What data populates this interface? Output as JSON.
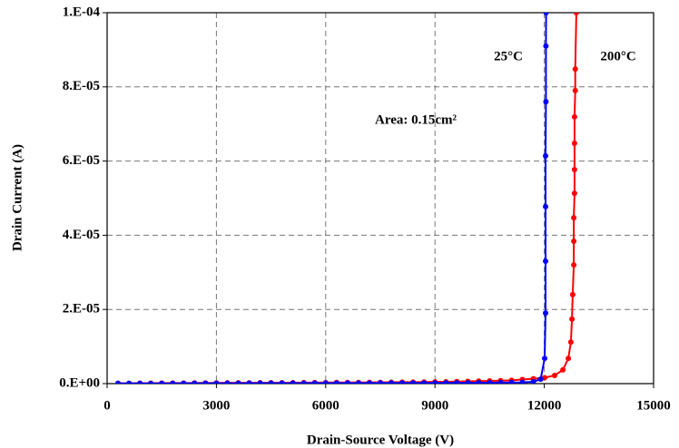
{
  "chart_data": {
    "type": "line",
    "xlabel": "Drain-Source Voltage (V)",
    "ylabel": "Drain Current (A)",
    "annotations": [
      "25°C",
      "200°C",
      "Area: 0.15cm²"
    ],
    "xlim": [
      0,
      15000
    ],
    "xticks": [
      0,
      3000,
      6000,
      9000,
      12000,
      15000
    ],
    "ylim": [
      0,
      0.0001
    ],
    "yticks": [
      {
        "value": 0,
        "label": "0.E+00"
      },
      {
        "value": 2e-05,
        "label": "2.E-05"
      },
      {
        "value": 4e-05,
        "label": "4.E-05"
      },
      {
        "value": 6e-05,
        "label": "6.E-05"
      },
      {
        "value": 8e-05,
        "label": "8.E-05"
      },
      {
        "value": 0.0001,
        "label": "1.E-04"
      }
    ],
    "grid": true,
    "series": [
      {
        "name": "200°C",
        "color": "#ff0000",
        "x": [
          300,
          600,
          900,
          1200,
          1500,
          1800,
          2100,
          2400,
          2700,
          3000,
          3300,
          3600,
          3900,
          4200,
          4500,
          4800,
          5100,
          5400,
          5700,
          6000,
          6300,
          6600,
          6900,
          7200,
          7500,
          7800,
          8100,
          8400,
          8700,
          9000,
          9300,
          9600,
          9900,
          10200,
          10500,
          10800,
          11100,
          11400,
          11700,
          12010,
          12285,
          12510,
          12660,
          12730,
          12760,
          12780,
          12810,
          12810,
          12810,
          12830,
          12830,
          12830,
          12830,
          12850,
          12850,
          12880
        ],
        "values": [
          1e-07,
          1e-07,
          1.2e-07,
          1.3e-07,
          1.4e-07,
          1.5e-07,
          1.6e-07,
          1.7e-07,
          1.8e-07,
          1.9e-07,
          2e-07,
          2.1e-07,
          2.2e-07,
          2.3e-07,
          2.4e-07,
          2.5e-07,
          2.6e-07,
          2.7e-07,
          2.8e-07,
          2.9e-07,
          3e-07,
          3.1e-07,
          3.2e-07,
          3.3e-07,
          3.5e-07,
          3.7e-07,
          3.9e-07,
          4.1e-07,
          4.3e-07,
          4.6e-07,
          5e-07,
          5.5e-07,
          6e-07,
          6.6e-07,
          7.3e-07,
          8e-07,
          9e-07,
          1.1e-06,
          1.3e-06,
          1.6e-06,
          2.2e-06,
          3.7e-06,
          6.8e-06,
          1.12e-05,
          1.74e-05,
          2.4e-05,
          3.2e-05,
          3.84e-05,
          4.47e-05,
          5.13e-05,
          5.77e-05,
          6.48e-05,
          7.19e-05,
          7.9e-05,
          8.48e-05,
          0.0001
        ]
      },
      {
        "name": "25°C",
        "color": "#0000ff",
        "x": [
          300,
          600,
          900,
          1200,
          1500,
          1800,
          2100,
          2400,
          2700,
          3000,
          3300,
          3600,
          3900,
          4200,
          4500,
          4800,
          5100,
          5400,
          5700,
          6000,
          6300,
          6600,
          6900,
          7200,
          7500,
          7800,
          8100,
          8400,
          8700,
          9000,
          9300,
          9600,
          9900,
          10200,
          10500,
          10800,
          11100,
          11400,
          11700,
          11900,
          12010,
          12035,
          12035,
          12035,
          12035,
          12045,
          12045,
          12050
        ],
        "values": [
          5e-08,
          5e-08,
          6e-08,
          6e-08,
          7e-08,
          7e-08,
          8e-08,
          8e-08,
          9e-08,
          9e-08,
          1e-07,
          1e-07,
          1.1e-07,
          1.1e-07,
          1.2e-07,
          1.2e-07,
          1.3e-07,
          1.3e-07,
          1.4e-07,
          1.4e-07,
          1.5e-07,
          1.5e-07,
          1.6e-07,
          1.6e-07,
          1.7e-07,
          1.7e-07,
          1.8e-07,
          1.8e-07,
          1.9e-07,
          1.9e-07,
          2e-07,
          2.1e-07,
          2.2e-07,
          2.3e-07,
          2.5e-07,
          2.7e-07,
          3e-07,
          3.5e-07,
          5e-07,
          1.2e-06,
          6.8e-06,
          1.9e-05,
          3.3e-05,
          4.77e-05,
          6.14e-05,
          7.6e-05,
          9.1e-05,
          0.0001
        ]
      }
    ]
  }
}
